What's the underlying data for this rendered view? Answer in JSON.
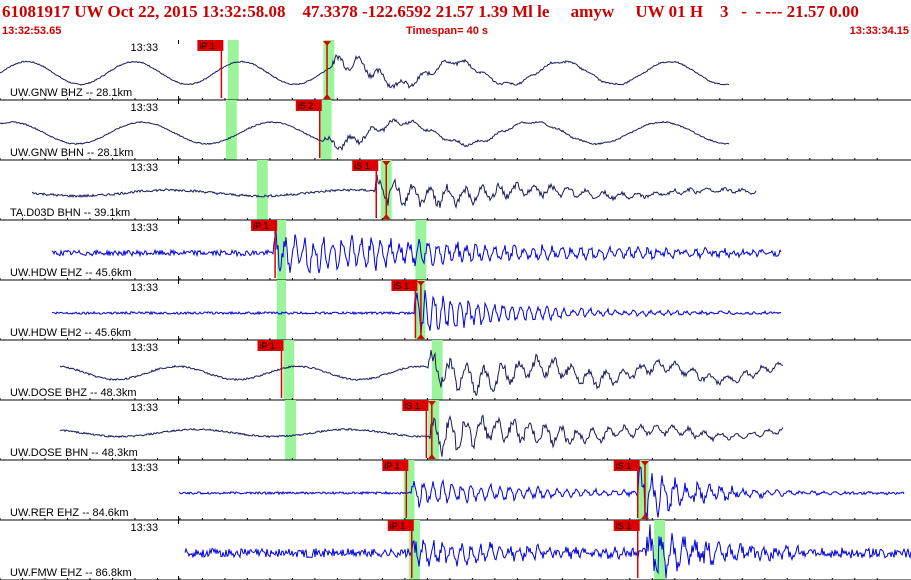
{
  "header": {
    "title": "61081917 UW Oct 22, 2015 13:32:58.08    47.3378 -122.6592 21.57 1.39 Ml le     amyw     UW 01 H    3   -  - --- 21.57 0.00",
    "start_time": "13:32:53.65",
    "timespan": "Timespan=  40 s",
    "end_time": "13:33:34.15"
  },
  "colors": {
    "dark_trace": "#1a1a5a",
    "blue_trace": "#0000dd",
    "pick": "#dd0000",
    "window": "#9af59a",
    "divider": "#000000"
  },
  "channels": [
    {
      "label": "UW.GNW BHZ -- 28.1km",
      "tick": "13:33",
      "color": "dark",
      "wave": {
        "start": 0.0,
        "end": 0.8,
        "noise": 0.02,
        "base_period": 8.5,
        "base_amp": 0.38,
        "onset": 0.365,
        "burst_amp": 0.25,
        "burst_decay": 8,
        "burst_freq": 90
      },
      "windows": [
        {
          "t": 0.25,
          "w": 0.012
        },
        {
          "t": 0.355,
          "w": 0.012
        }
      ],
      "picks": [
        {
          "label": "iP 1",
          "t": 0.243
        },
        {
          "label": "",
          "t": 0.359
        }
      ]
    },
    {
      "label": "UW.GNW BHN -- 28.1km",
      "tick": "13:33",
      "color": "dark",
      "wave": {
        "start": 0.0,
        "end": 0.8,
        "noise": 0.02,
        "base_period": 7.0,
        "base_amp": 0.36,
        "onset": 0.355,
        "burst_amp": 0.2,
        "burst_decay": 8,
        "burst_freq": 90
      },
      "windows": [
        {
          "t": 0.248,
          "w": 0.012
        },
        {
          "t": 0.352,
          "w": 0.012
        }
      ],
      "picks": [
        {
          "label": "iS 2",
          "t": 0.351
        }
      ]
    },
    {
      "label": "TA.D03D BHN -- 39.1km",
      "tick": "13:33",
      "color": "dark",
      "wave": {
        "start": 0.035,
        "end": 0.83,
        "noise": 0.04,
        "base_period": 5.0,
        "base_amp": 0.1,
        "onset": 0.41,
        "burst_amp": 0.38,
        "burst_decay": 5,
        "burst_freq": 110
      },
      "windows": [
        {
          "t": 0.282,
          "w": 0.012
        },
        {
          "t": 0.418,
          "w": 0.012
        }
      ],
      "picks": [
        {
          "label": "iS 1",
          "t": 0.413
        },
        {
          "label": "",
          "t": 0.424
        }
      ]
    },
    {
      "label": "UW.HDW EHZ -- 45.6km",
      "tick": "13:33",
      "color": "blue",
      "wave": {
        "start": 0.057,
        "end": 0.857,
        "noise": 0.09,
        "base_period": 0,
        "base_amp": 0,
        "onset": 0.3,
        "burst_amp": 0.55,
        "burst_decay": 4,
        "burst_freq": 200
      },
      "windows": [
        {
          "t": 0.304,
          "w": 0.01
        },
        {
          "t": 0.456,
          "w": 0.012
        }
      ],
      "picks": [
        {
          "label": "iP 1",
          "t": 0.302
        }
      ]
    },
    {
      "label": "UW.HDW EH2 -- 45.6km",
      "tick": "13:33",
      "color": "blue",
      "wave": {
        "start": 0.057,
        "end": 0.857,
        "noise": 0.04,
        "base_period": 0,
        "base_amp": 0,
        "onset": 0.455,
        "burst_amp": 0.6,
        "burst_decay": 9,
        "burst_freq": 220
      },
      "windows": [
        {
          "t": 0.304,
          "w": 0.01
        },
        {
          "t": 0.455,
          "w": 0.012
        }
      ],
      "picks": [
        {
          "label": "iS 1",
          "t": 0.456
        },
        {
          "label": "",
          "t": 0.462
        }
      ]
    },
    {
      "label": "UW.DOSE BHZ -- 48.3km",
      "tick": "13:33",
      "color": "dark",
      "wave": {
        "start": 0.066,
        "end": 0.86,
        "noise": 0.03,
        "base_period": 7.5,
        "base_amp": 0.22,
        "onset": 0.47,
        "burst_amp": 0.45,
        "burst_decay": 4,
        "burst_freq": 110
      },
      "windows": [
        {
          "t": 0.311,
          "w": 0.012
        },
        {
          "t": 0.474,
          "w": 0.012
        }
      ],
      "picks": [
        {
          "label": "iP 1",
          "t": 0.309
        }
      ]
    },
    {
      "label": "UW.DOSE BHN -- 48.3km",
      "tick": "13:33",
      "color": "dark",
      "wave": {
        "start": 0.066,
        "end": 0.86,
        "noise": 0.03,
        "base_period": 6.0,
        "base_amp": 0.12,
        "onset": 0.472,
        "burst_amp": 0.5,
        "burst_decay": 5,
        "burst_freq": 120
      },
      "windows": [
        {
          "t": 0.313,
          "w": 0.012
        },
        {
          "t": 0.47,
          "w": 0.012
        }
      ],
      "picks": [
        {
          "label": "iS 1",
          "t": 0.468
        },
        {
          "label": "",
          "t": 0.474
        }
      ]
    },
    {
      "label": "UW.RER EHZ -- 84.6km",
      "tick": "13:33",
      "color": "blue",
      "wave": {
        "start": 0.196,
        "end": 0.992,
        "noise": 0.04,
        "base_period": 0,
        "base_amp": 0,
        "onset": 0.452,
        "burst_amp": 0.35,
        "burst_decay": 7,
        "burst_freq": 200,
        "onset2": 0.7,
        "burst2_amp": 0.6
      },
      "windows": [
        {
          "t": 0.443,
          "w": 0.012
        },
        {
          "t": 0.7,
          "w": 0.012
        }
      ],
      "picks": [
        {
          "label": "iP 1",
          "t": 0.446
        },
        {
          "label": "iS 1",
          "t": 0.7
        },
        {
          "label": "",
          "t": 0.708
        }
      ]
    },
    {
      "label": "UW.FMW EHZ -- 86.8km",
      "tick": "13:33",
      "color": "blue",
      "wave": {
        "start": 0.203,
        "end": 1.0,
        "noise": 0.15,
        "base_period": 0,
        "base_amp": 0,
        "onset": 0.452,
        "burst_amp": 0.3,
        "burst_decay": 6,
        "burst_freq": 200,
        "onset2": 0.71,
        "burst2_amp": 0.7
      },
      "windows": [
        {
          "t": 0.449,
          "w": 0.012
        },
        {
          "t": 0.718,
          "w": 0.012
        }
      ],
      "picks": [
        {
          "label": "iP 1",
          "t": 0.452
        },
        {
          "label": "iS 1",
          "t": 0.7
        }
      ]
    }
  ]
}
